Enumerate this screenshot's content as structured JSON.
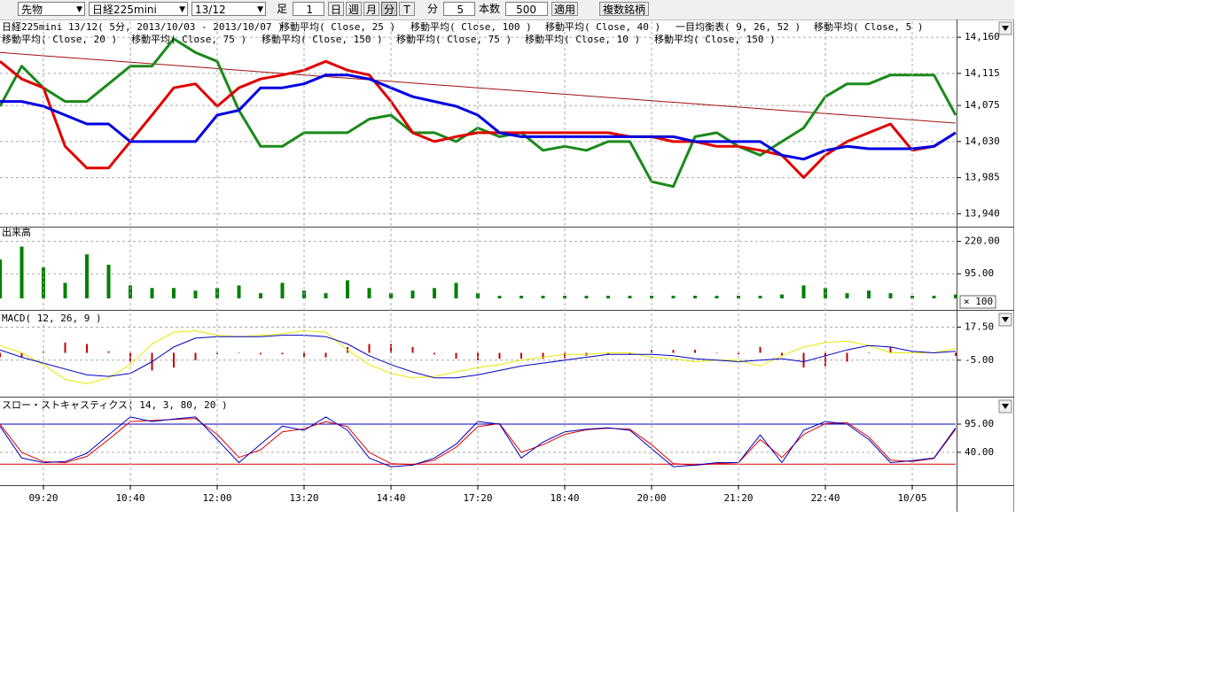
{
  "toolbar": {
    "market": "先物",
    "symbol": "日経225mini",
    "contract": "13/12",
    "bar_label": "足",
    "bar_count": "1",
    "buttons": [
      "日",
      "週",
      "月",
      "分",
      "T"
    ],
    "unit_label": "分",
    "interval": "5",
    "count_label": "本数",
    "count": "500",
    "apply": "適用",
    "multi": "複数銘柄"
  },
  "chart_data": [
    {
      "type": "line",
      "title": "日経225mini 13/12( 5分, 2013/10/03 - 2013/10/07 )",
      "annotations": [
        "移動平均( Close, 25 )",
        "移動平均( Close, 100 )",
        "移動平均( Close, 40 )",
        "一目均衡表( 9, 26, 52 )",
        "移動平均( Close, 5 )",
        "移動平均( Close, 20 )",
        "移動平均( Close, 75 )",
        "移動平均( Close, 150 )",
        "移動平均( Close, 75 )",
        "移動平均( Close, 10 )",
        "移動平均( Close, 150 )"
      ],
      "ylim": [
        13925,
        14180
      ],
      "yticks": [
        {
          "value": 14160,
          "label": "14,160"
        },
        {
          "value": 14115,
          "label": "14,115"
        },
        {
          "value": 14075,
          "label": "14,075"
        },
        {
          "value": 14030,
          "label": "14,030"
        },
        {
          "value": 13985,
          "label": "13,985"
        },
        {
          "value": 13940,
          "label": "13,940"
        }
      ],
      "grid": true,
      "series": [
        {
          "color": "#a01010",
          "width": 1,
          "values": [
            14141,
            14139,
            14137,
            14135,
            14133,
            14131,
            14129,
            14127,
            14125,
            14123,
            14121,
            14119,
            14117,
            14115,
            14113,
            14111,
            14109,
            14107,
            14105,
            14103,
            14101,
            14099,
            14097,
            14095,
            14093,
            14091,
            14089,
            14087,
            14085,
            14083,
            14081,
            14079,
            14077,
            14075,
            14073,
            14071,
            14069,
            14067,
            14065,
            14063,
            14061,
            14059,
            14057,
            14055,
            14053
          ]
        },
        {
          "color": "#1a8a1a",
          "width": 3,
          "values": [
            14074,
            14124,
            14097,
            14080,
            14080,
            14102,
            14124,
            14124,
            14158,
            14141,
            14130,
            14069,
            14024,
            14024,
            14041,
            14041,
            14041,
            14058,
            14063,
            14041,
            14041,
            14030,
            14047,
            14036,
            14041,
            14019,
            14024,
            14019,
            14030,
            14030,
            13980,
            13974,
            14036,
            14041,
            14024,
            14013,
            14030,
            14047,
            14086,
            14102,
            14102,
            14113,
            14113,
            14113,
            14063
          ]
        },
        {
          "color": "#e00000",
          "width": 3,
          "values": [
            14130,
            14108,
            14097,
            14024,
            13997,
            13997,
            14030,
            14063,
            14097,
            14102,
            14074,
            14097,
            14108,
            14113,
            14119,
            14130,
            14119,
            14113,
            14080,
            14041,
            14030,
            14036,
            14041,
            14041,
            14041,
            14041,
            14041,
            14041,
            14041,
            14036,
            14036,
            14030,
            14030,
            14024,
            14024,
            14019,
            14013,
            13985,
            14013,
            14030,
            14041,
            14052,
            14019,
            14024,
            14041
          ]
        },
        {
          "color": "#0000e0",
          "width": 3,
          "values": [
            14080,
            14080,
            14074,
            14063,
            14052,
            14052,
            14030,
            14030,
            14030,
            14030,
            14063,
            14069,
            14097,
            14097,
            14102,
            14113,
            14113,
            14108,
            14097,
            14086,
            14080,
            14074,
            14063,
            14041,
            14036,
            14036,
            14036,
            14036,
            14036,
            14036,
            14036,
            14036,
            14030,
            14030,
            14030,
            14030,
            14013,
            14008,
            14019,
            14024,
            14021,
            14021,
            14021,
            14024,
            14041
          ]
        }
      ]
    },
    {
      "type": "bar",
      "title": "出来高",
      "unit": "× 100",
      "color": "#008000",
      "ylim": [
        0,
        270
      ],
      "yticks": [
        {
          "value": 220,
          "label": "220.00"
        },
        {
          "value": 95,
          "label": "95.00"
        }
      ],
      "grid": true,
      "values": [
        150,
        200,
        120,
        60,
        170,
        130,
        50,
        40,
        40,
        30,
        40,
        50,
        20,
        60,
        30,
        20,
        70,
        40,
        20,
        30,
        40,
        60,
        20,
        10,
        10,
        10,
        10,
        10,
        10,
        10,
        10,
        10,
        10,
        10,
        10,
        10,
        15,
        50,
        40,
        20,
        30,
        20,
        10,
        10,
        15
      ]
    },
    {
      "type": "line",
      "title": "MACD( 12, 26, 9 )",
      "ylim": [
        -28,
        28
      ],
      "yticks": [
        {
          "value": 17.5,
          "label": "17.50"
        },
        {
          "value": -5,
          "label": "-5.00"
        }
      ],
      "grid": true,
      "series": [
        {
          "color": "#c00000",
          "style": "histogram",
          "values": [
            -3,
            -3,
            1,
            7,
            6,
            1,
            -6,
            -12,
            -10,
            -5,
            -1,
            0,
            -1,
            -1,
            -3,
            -3,
            4,
            6,
            6,
            4,
            -1,
            -4,
            -5,
            -4,
            -4,
            -4,
            -4,
            -2,
            -1,
            -1,
            2,
            2,
            2,
            0,
            -1,
            4,
            -2,
            -10,
            -9,
            -6,
            0,
            4,
            1,
            0,
            -2
          ]
        },
        {
          "color": "#e8e800",
          "width": 1,
          "values": [
            5,
            0,
            -8,
            -18,
            -21,
            -17,
            -8,
            6,
            14,
            15,
            12,
            11,
            12,
            13,
            15,
            14,
            2,
            -8,
            -14,
            -17,
            -16,
            -13,
            -10,
            -8,
            -5,
            -3,
            -1,
            -1,
            0,
            0,
            -3,
            -4,
            -6,
            -5,
            -5,
            -9,
            -2,
            4,
            7,
            8,
            5,
            0,
            0,
            0,
            3
          ]
        },
        {
          "color": "#0000c0",
          "width": 1,
          "values": [
            2,
            -3,
            -7,
            -11,
            -15,
            -16,
            -14,
            -6,
            4,
            10,
            11,
            11,
            11,
            12,
            12,
            11,
            6,
            -2,
            -8,
            -13,
            -17,
            -17,
            -15,
            -12,
            -9,
            -7,
            -5,
            -3,
            -1,
            -1,
            -1,
            -2,
            -4,
            -5,
            -6,
            -5,
            -4,
            -6,
            -2,
            2,
            5,
            4,
            1,
            0,
            1
          ]
        }
      ]
    },
    {
      "type": "line",
      "title": "スロー・ストキャスティクス( 14, 3, 80, 20 )",
      "ylim": [
        -24,
        145
      ],
      "yticks": [
        {
          "value": 95,
          "label": "95.00"
        },
        {
          "value": 40,
          "label": "40.00"
        }
      ],
      "grid": true,
      "hlines": [
        {
          "value": 95,
          "color": "#0000c0"
        },
        {
          "value": 17,
          "color": "#e00000"
        }
      ],
      "categories": [
        null,
        null,
        "09:20",
        null,
        null,
        null,
        "10:40",
        null,
        null,
        null,
        "12:00",
        null,
        null,
        null,
        "13:20",
        null,
        null,
        null,
        "14:40",
        null,
        null,
        null,
        "17:20",
        null,
        null,
        null,
        "18:40",
        null,
        null,
        null,
        "20:00",
        null,
        null,
        null,
        "21:20",
        null,
        null,
        null,
        "22:40",
        null,
        null,
        null,
        "10/05",
        null,
        null
      ],
      "series": [
        {
          "color": "#e00000",
          "width": 1,
          "values": [
            95,
            40,
            22,
            20,
            32,
            65,
            100,
            102,
            104,
            106,
            75,
            30,
            45,
            80,
            86,
            100,
            90,
            40,
            18,
            16,
            25,
            50,
            90,
            96,
            40,
            55,
            75,
            84,
            87,
            85,
            55,
            18,
            15,
            18,
            20,
            65,
            30,
            75,
            96,
            98,
            70,
            25,
            22,
            28,
            85
          ]
        },
        {
          "color": "#0000c0",
          "width": 1,
          "values": [
            91,
            29,
            20,
            22,
            38,
            74,
            109,
            100,
            105,
            109,
            65,
            20,
            56,
            91,
            83,
            109,
            83,
            29,
            12,
            15,
            29,
            56,
            100,
            95,
            29,
            60,
            80,
            85,
            88,
            83,
            47,
            12,
            15,
            20,
            20,
            74,
            20,
            83,
            100,
            95,
            65,
            20,
            24,
            29,
            88
          ]
        }
      ]
    }
  ]
}
